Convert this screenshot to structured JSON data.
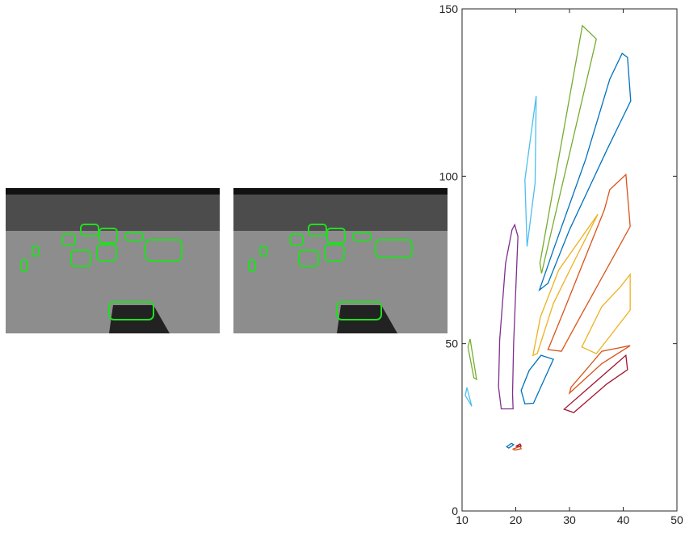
{
  "chart_data": {
    "type": "polygon",
    "xlim": [
      10,
      50
    ],
    "ylim": [
      0,
      150
    ],
    "xticks": [
      10,
      20,
      30,
      40,
      50
    ],
    "yticks": [
      0,
      50,
      100,
      150
    ],
    "series": [
      {
        "color": "#4DBEEE",
        "x": [
          23.8,
          21.7,
          22.1,
          23.6
        ],
        "y": [
          124,
          99,
          79,
          98
        ]
      },
      {
        "color": "#77AC30",
        "x": [
          32.4,
          35,
          24.8,
          24.5
        ],
        "y": [
          145,
          141,
          71,
          74
        ]
      },
      {
        "color": "#0072BD",
        "x": [
          24.4,
          27,
          33,
          37.5,
          39.8,
          40.8,
          41.4,
          37,
          30,
          26
        ],
        "y": [
          66,
          78,
          105,
          129,
          136.7,
          135.5,
          122.5,
          108,
          84,
          68
        ]
      },
      {
        "color": "#7E2F8E",
        "x": [
          19.8,
          20.4,
          19.6,
          19.4,
          19.5,
          17.3,
          16.8,
          17,
          18.1,
          19.3
        ],
        "y": [
          85.5,
          82,
          50,
          35,
          30.5,
          30.5,
          37,
          51,
          74,
          84
        ]
      },
      {
        "color": "#D95319",
        "x": [
          40.5,
          41.3,
          32,
          28.5,
          26,
          29,
          36.5,
          37.5
        ],
        "y": [
          100.5,
          85,
          58,
          47.7,
          48.2,
          60,
          90,
          96
        ]
      },
      {
        "color": "#EDB120",
        "x": [
          35.3,
          28,
          24.6,
          23.2,
          24,
          27,
          31
        ],
        "y": [
          88.7,
          72,
          58,
          46.5,
          47,
          62,
          75
        ]
      },
      {
        "color": "#EDB120",
        "x": [
          41.3,
          41.3,
          35,
          32.3,
          36,
          39.5
        ],
        "y": [
          70.7,
          60,
          47,
          49,
          61,
          67
        ]
      },
      {
        "color": "#0072BD",
        "x": [
          24.7,
          27,
          25.5,
          23.3,
          21.7,
          21,
          22.5
        ],
        "y": [
          46.5,
          45.3,
          40,
          32.2,
          32,
          36,
          42
        ]
      },
      {
        "color": "#A2142F",
        "x": [
          40.5,
          40.8,
          37,
          30.8,
          29,
          33
        ],
        "y": [
          46.5,
          42.2,
          38,
          29.4,
          30.4,
          36
        ]
      },
      {
        "color": "#D95319",
        "x": [
          41.3,
          36,
          30,
          30.3,
          33,
          36
        ],
        "y": [
          49.4,
          44,
          35.2,
          37,
          42,
          47.7
        ]
      },
      {
        "color": "#77AC30",
        "x": [
          11.5,
          12.7,
          12.2,
          11.1
        ],
        "y": [
          51.4,
          39.3,
          39.8,
          49
        ]
      },
      {
        "color": "#4DBEEE",
        "x": [
          10.9,
          11.8,
          10.6
        ],
        "y": [
          36.9,
          31.3,
          34.5
        ]
      },
      {
        "color": "#0072BD",
        "x": [
          18.3,
          19.2,
          19.6,
          18.7
        ],
        "y": [
          19.2,
          20.2,
          19.8,
          18.8
        ]
      },
      {
        "color": "#D95319",
        "x": [
          19.5,
          20.8,
          21,
          19.8
        ],
        "y": [
          18.5,
          19.3,
          18.6,
          18.2
        ]
      },
      {
        "color": "#A2142F",
        "x": [
          20,
          20.8,
          21
        ],
        "y": [
          19.3,
          20,
          19.4
        ]
      }
    ]
  }
}
